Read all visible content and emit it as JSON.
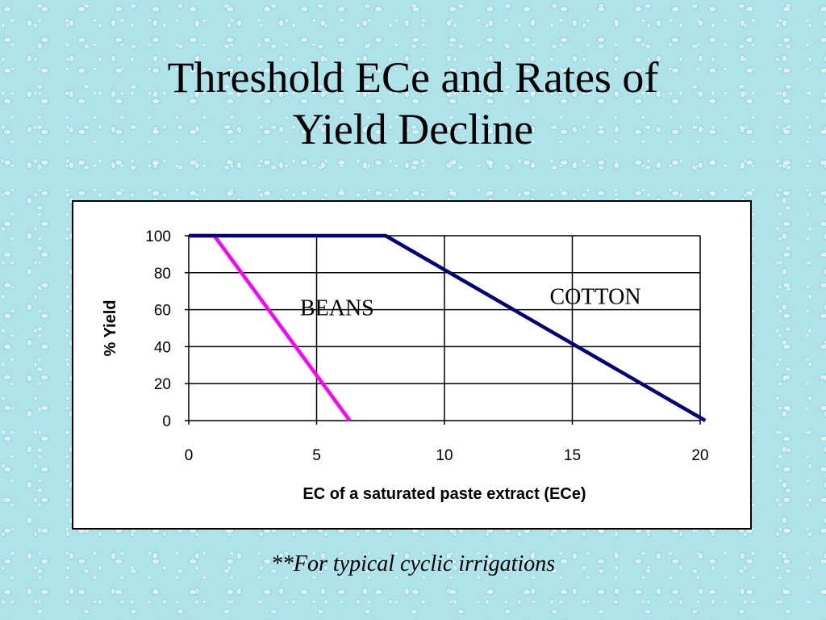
{
  "slide": {
    "title_line1": "Threshold ECe and Rates of",
    "title_line2": "Yield Decline",
    "footnote": "**For typical cyclic irrigations"
  },
  "chart_data": {
    "type": "line",
    "title": "",
    "xlabel": "EC of a saturated paste extract (ECe)",
    "ylabel": "% Yield",
    "xlim": [
      0,
      20
    ],
    "ylim": [
      0,
      100
    ],
    "x_ticks": [
      0,
      5,
      10,
      15,
      20
    ],
    "y_ticks": [
      0,
      20,
      40,
      60,
      80,
      100
    ],
    "grid": true,
    "series": [
      {
        "name": "BEANS",
        "color": "#ff00ff",
        "x": [
          0,
          1.0,
          6.3
        ],
        "y": [
          100,
          100,
          0
        ]
      },
      {
        "name": "COTTON",
        "color": "#000080",
        "x": [
          0,
          7.7,
          20.2
        ],
        "y": [
          100,
          100,
          0
        ]
      }
    ],
    "annotations": [
      {
        "text": "BEANS",
        "x": 5.8,
        "y": 57
      },
      {
        "text": "COTTON",
        "x": 15.9,
        "y": 63
      }
    ]
  }
}
